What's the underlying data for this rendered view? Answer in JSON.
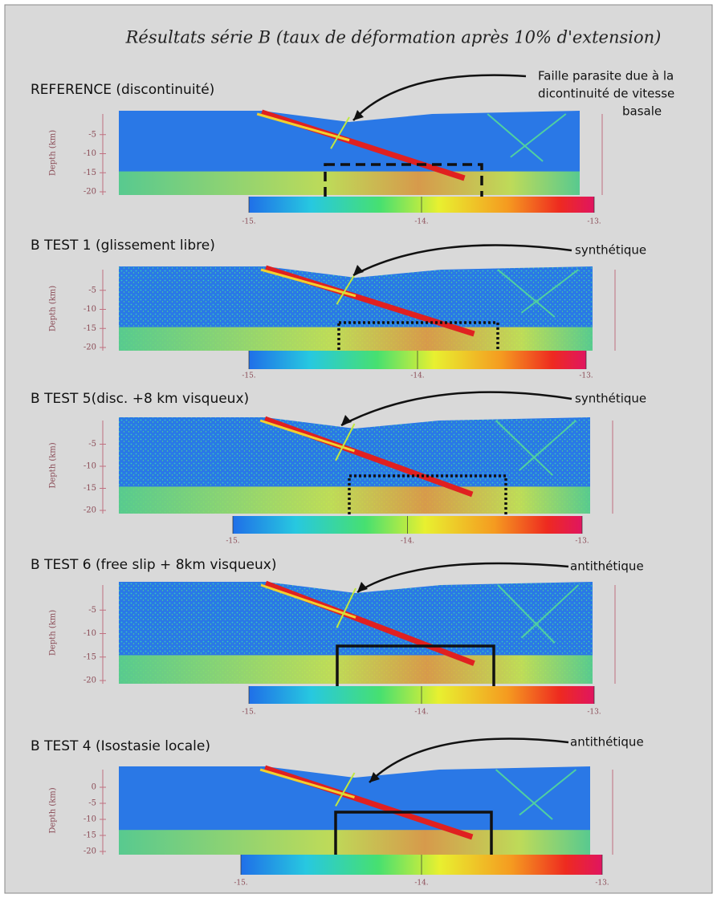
{
  "title": "Résultats série B (taux de déformation après 10% d'extension)",
  "panels": [
    {
      "label": "REFERENCE (discontinuité)",
      "annotation": [
        "Faille parasite  due à la",
        "dicontinuité de vitesse",
        "basale"
      ],
      "axis_label": "Depth (km)",
      "yticks": [
        "-5",
        "-10",
        "-15",
        "-20"
      ],
      "colorbar_ticks": [
        "-15.",
        "-14.",
        "-13."
      ]
    },
    {
      "label": "B TEST 1 (glissement libre)",
      "annotation": [
        "synthétique"
      ],
      "axis_label": "Depth (km)",
      "yticks": [
        "-5",
        "-10",
        "-15",
        "-20"
      ],
      "colorbar_ticks": [
        "-15.",
        "-14.",
        "-13."
      ]
    },
    {
      "label": "B TEST 5(disc. +8 km visqueux)",
      "annotation": [
        "synthétique"
      ],
      "axis_label": "Depth (km)",
      "yticks": [
        "-5",
        "-10",
        "-15",
        "-20"
      ],
      "colorbar_ticks": [
        "-15.",
        "-14.",
        "-13."
      ]
    },
    {
      "label": "B TEST 6 (free slip + 8km visqueux)",
      "annotation": [
        "antithétique"
      ],
      "axis_label": "Depth (km)",
      "yticks": [
        "-5",
        "-10",
        "-15",
        "-20"
      ],
      "colorbar_ticks": [
        "-15.",
        "-14.",
        "-13."
      ]
    },
    {
      "label": "B TEST 4 (Isostasie locale)",
      "annotation": [
        "antithétique"
      ],
      "axis_label": "Depth (km)",
      "yticks": [
        "0",
        "-5",
        "-10",
        "-15",
        "-20"
      ],
      "colorbar_ticks": [
        "-15.",
        "-14.",
        "-13."
      ]
    }
  ]
}
